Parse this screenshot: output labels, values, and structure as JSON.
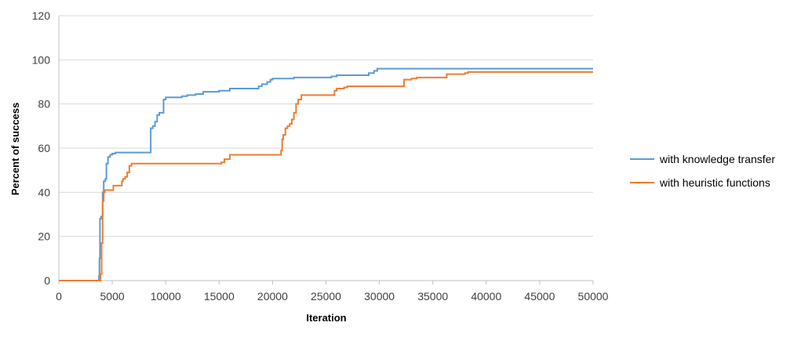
{
  "chart_data": {
    "type": "line",
    "title": "",
    "xlabel": "Iteration",
    "ylabel": "Percent of success",
    "xlim": [
      0,
      50000
    ],
    "ylim": [
      0,
      120
    ],
    "x_ticks": [
      0,
      5000,
      10000,
      15000,
      20000,
      25000,
      30000,
      35000,
      40000,
      45000,
      50000
    ],
    "y_ticks": [
      0,
      20,
      40,
      60,
      80,
      100,
      120
    ],
    "grid": "horizontal",
    "legend_position": "right",
    "series": [
      {
        "name": "with knowledge transfer",
        "color": "#5B9BD5",
        "step": true,
        "points": [
          [
            0,
            0
          ],
          [
            3700,
            0
          ],
          [
            3750,
            2
          ],
          [
            3800,
            10
          ],
          [
            3850,
            28
          ],
          [
            3950,
            29
          ],
          [
            4100,
            40
          ],
          [
            4200,
            45
          ],
          [
            4350,
            46
          ],
          [
            4450,
            53
          ],
          [
            4600,
            56
          ],
          [
            4800,
            57
          ],
          [
            5000,
            57.5
          ],
          [
            5300,
            58
          ],
          [
            8500,
            58
          ],
          [
            8600,
            69
          ],
          [
            8800,
            70
          ],
          [
            9000,
            72
          ],
          [
            9200,
            75
          ],
          [
            9400,
            76
          ],
          [
            9800,
            82
          ],
          [
            10000,
            83
          ],
          [
            11500,
            83.5
          ],
          [
            12000,
            84
          ],
          [
            12800,
            84.5
          ],
          [
            13500,
            85.5
          ],
          [
            15000,
            86
          ],
          [
            16000,
            87
          ],
          [
            18500,
            87
          ],
          [
            18700,
            88
          ],
          [
            19000,
            89
          ],
          [
            19500,
            90
          ],
          [
            19800,
            91
          ],
          [
            20000,
            91.5
          ],
          [
            22000,
            92
          ],
          [
            25500,
            92.5
          ],
          [
            26000,
            93
          ],
          [
            28500,
            93
          ],
          [
            29000,
            94
          ],
          [
            29500,
            95
          ],
          [
            29800,
            96
          ],
          [
            50000,
            96
          ]
        ]
      },
      {
        "name": "with heuristic functions",
        "color": "#ED7D31",
        "step": true,
        "points": [
          [
            0,
            0
          ],
          [
            3800,
            0
          ],
          [
            3900,
            3
          ],
          [
            4000,
            17
          ],
          [
            4100,
            36
          ],
          [
            4200,
            40
          ],
          [
            4300,
            41
          ],
          [
            5000,
            41
          ],
          [
            5100,
            43
          ],
          [
            5800,
            43
          ],
          [
            5900,
            45
          ],
          [
            6000,
            46
          ],
          [
            6200,
            47
          ],
          [
            6400,
            49
          ],
          [
            6600,
            52
          ],
          [
            6800,
            53
          ],
          [
            15200,
            53.5
          ],
          [
            15500,
            55
          ],
          [
            16000,
            57
          ],
          [
            20700,
            57
          ],
          [
            20800,
            59
          ],
          [
            20900,
            64
          ],
          [
            21000,
            66
          ],
          [
            21200,
            69
          ],
          [
            21400,
            70
          ],
          [
            21600,
            71
          ],
          [
            21800,
            73
          ],
          [
            22000,
            76
          ],
          [
            22200,
            80
          ],
          [
            22400,
            82
          ],
          [
            22700,
            84
          ],
          [
            25500,
            84
          ],
          [
            25800,
            86
          ],
          [
            26000,
            87
          ],
          [
            26700,
            87.5
          ],
          [
            27000,
            88
          ],
          [
            32000,
            88
          ],
          [
            32300,
            91
          ],
          [
            33000,
            91.5
          ],
          [
            33500,
            92
          ],
          [
            36000,
            92
          ],
          [
            36300,
            93.5
          ],
          [
            38000,
            94
          ],
          [
            38300,
            94.5
          ],
          [
            50000,
            94.5
          ]
        ]
      }
    ]
  }
}
